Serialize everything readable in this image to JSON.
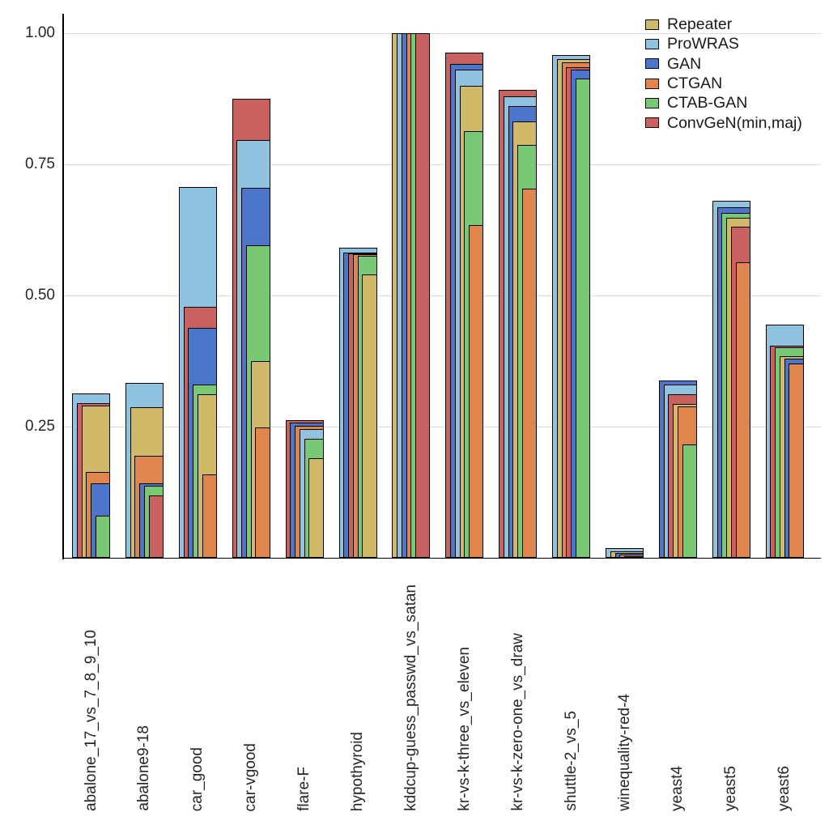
{
  "chart_data": {
    "type": "bar",
    "subtype": "nested-overlapping-bars",
    "title": "",
    "xlabel": "",
    "ylabel": "",
    "ylim": [
      0,
      1.05
    ],
    "grid": "horizontal",
    "legend_position": "upper right",
    "yticks": {
      "values": [
        0.25,
        0.5,
        0.75,
        1.0
      ],
      "labels": [
        "0.25",
        "0.50",
        "0.75",
        "1.00"
      ]
    },
    "categories": [
      "abalone_17_vs_7_8_9_10",
      "abalone9-18",
      "car_good",
      "car-vgood",
      "flare-F",
      "hypothyroid",
      "kddcup-guess_passwd_vs_satan",
      "kr-vs-k-three_vs_eleven",
      "kr-vs-k-zero-one_vs_draw",
      "shuttle-2_vs_5",
      "winequality-red-4",
      "yeast4",
      "yeast5",
      "yeast6"
    ],
    "series": [
      {
        "name": "Repeater",
        "color": "#d1b96a",
        "values": [
          0.29,
          0.287,
          0.311,
          0.375,
          0.19,
          0.54,
          1.0,
          0.899,
          0.832,
          0.951,
          0.013,
          0.293,
          0.648,
          0.384
        ]
      },
      {
        "name": "ProWRAS",
        "color": "#8fc3e0",
        "values": [
          0.314,
          0.333,
          0.707,
          0.797,
          0.246,
          0.591,
          1.0,
          0.93,
          0.879,
          0.958,
          0.019,
          0.331,
          0.68,
          0.444
        ]
      },
      {
        "name": "GAN",
        "color": "#4c76cb",
        "values": [
          0.142,
          0.142,
          0.438,
          0.706,
          0.257,
          0.582,
          1.0,
          0.941,
          0.861,
          0.931,
          0.01,
          0.338,
          0.668,
          0.38
        ]
      },
      {
        "name": "CTGAN",
        "color": "#e0854e",
        "values": [
          0.163,
          0.195,
          0.159,
          0.248,
          0.251,
          0.578,
          1.0,
          0.635,
          0.704,
          0.945,
          0.006,
          0.289,
          0.564,
          0.371
        ]
      },
      {
        "name": "CTAB-GAN",
        "color": "#79c873",
        "values": [
          0.081,
          0.138,
          0.331,
          0.596,
          0.227,
          0.576,
          1.0,
          0.814,
          0.787,
          0.914,
          0.003,
          0.216,
          0.658,
          0.402
        ]
      },
      {
        "name": "ConvGeN(min,maj)",
        "color": "#c96161",
        "values": [
          0.294,
          0.119,
          0.478,
          0.875,
          0.263,
          0.58,
          1.0,
          0.963,
          0.892,
          0.935,
          0.002,
          0.312,
          0.631,
          0.405
        ]
      }
    ]
  }
}
